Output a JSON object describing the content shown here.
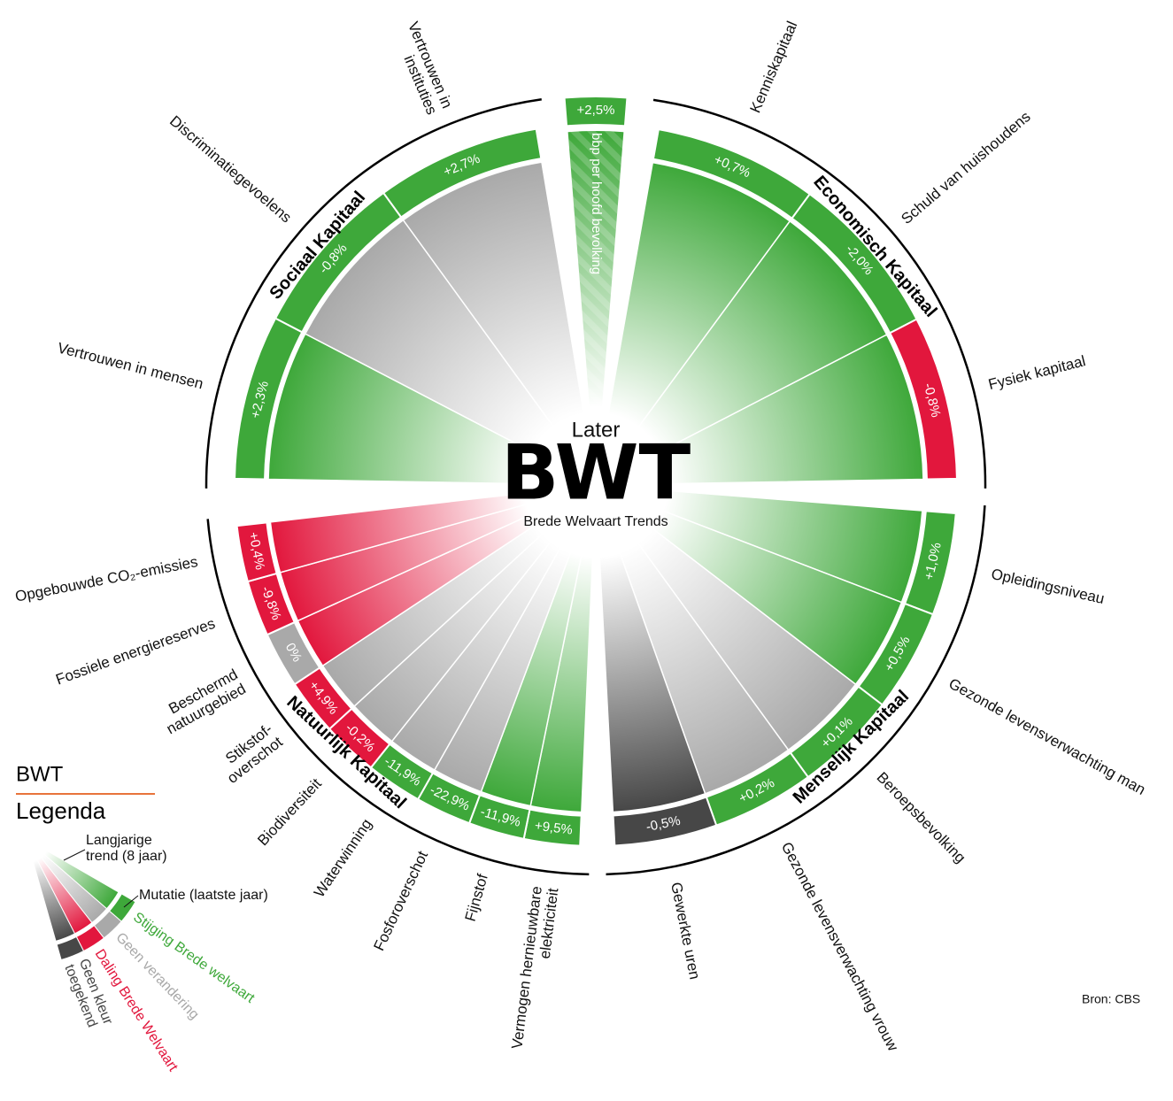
{
  "chart_data": {
    "type": "radial",
    "pretitle": "Later",
    "title": "BWT",
    "subtitle": "Brede Welvaart Trends",
    "source": "Bron: CBS",
    "bbp": {
      "category": "bbp per hoofd bevolking",
      "value": 2.5,
      "value_label": "+2,5%",
      "trend_color": "#3ea83a",
      "band_color": "#3ea83a"
    },
    "groups": [
      {
        "name": "Economisch Kapitaal",
        "categories": [
          "Kenniskapitaal",
          "Schuld van huishoudens",
          "Fysiek kapitaal"
        ],
        "values": [
          0.7,
          -2.0,
          -0.8
        ],
        "value_labels": [
          "+0,7%",
          "-2,0%",
          "-0,8%"
        ],
        "trend_colors": [
          "#3ea83a",
          "#3ea83a",
          "#3ea83a"
        ],
        "band_colors": [
          "#3ea83a",
          "#3ea83a",
          "#e2173d"
        ]
      },
      {
        "name": "Menselijk Kapitaal",
        "categories": [
          "Opleidingsniveau",
          "Gezonde levensverwachting man",
          "Beroepsbevolking",
          "Gezonde levensverwachting vrouw",
          "Gewerkte uren"
        ],
        "values": [
          1.0,
          0.5,
          0.1,
          0.2,
          -0.5
        ],
        "value_labels": [
          "+1,0%",
          "+0,5%",
          "+0,1%",
          "+0,2%",
          "-0,5%"
        ],
        "trend_colors": [
          "#3ea83a",
          "#3ea83a",
          "#a9a9a9",
          "#a9a9a9",
          "#474747"
        ],
        "band_colors": [
          "#3ea83a",
          "#3ea83a",
          "#3ea83a",
          "#3ea83a",
          "#474747"
        ]
      },
      {
        "name": "Natuurlijk Kapitaal",
        "categories": [
          [
            "Vermogen hernieuwbare",
            "elektriciteit"
          ],
          "Fijnstof",
          "Fosforoverschot",
          "Waterwinning",
          "Biodiversiteit",
          [
            "Stikstof-",
            "overschot"
          ],
          [
            "Beschermd",
            "natuurgebied"
          ],
          "Fossiele energiereserves",
          "Opgebouwde CO₂-emissies"
        ],
        "values": [
          9.5,
          -11.9,
          -22.9,
          -11.9,
          -0.2,
          4.9,
          0,
          -9.8,
          0.4
        ],
        "value_labels": [
          "+9,5%",
          "-11,9%",
          "-22,9%",
          "-11,9%",
          "-0,2%",
          "+4,9%",
          "0%",
          "-9,8%",
          "+0,4%"
        ],
        "trend_colors": [
          "#3ea83a",
          "#3ea83a",
          "#a9a9a9",
          "#a9a9a9",
          "#a9a9a9",
          "#a9a9a9",
          "#e2173d",
          "#e2173d",
          "#e2173d"
        ],
        "band_colors": [
          "#3ea83a",
          "#3ea83a",
          "#3ea83a",
          "#3ea83a",
          "#e2173d",
          "#e2173d",
          "#a9a9a9",
          "#e2173d",
          "#e2173d"
        ]
      },
      {
        "name": "Sociaal Kapitaal",
        "categories": [
          "Vertrouwen in mensen",
          "Discriminatiegevoelens",
          [
            "Vertrouwen in",
            "instituties"
          ]
        ],
        "values": [
          2.3,
          -0.8,
          2.7
        ],
        "value_labels": [
          "+2,3%",
          "-0,8%",
          "+2,7%"
        ],
        "trend_colors": [
          "#3ea83a",
          "#a9a9a9",
          "#a9a9a9"
        ],
        "band_colors": [
          "#3ea83a",
          "#3ea83a",
          "#3ea83a"
        ]
      }
    ],
    "legend": {
      "title": "BWT",
      "subtitle": "Legenda",
      "trend_label": [
        "Langjarige",
        "trend (8 jaar)"
      ],
      "band_label": "Mutatie (laatste jaar)",
      "items": [
        {
          "label": "Stijging Brede welvaart",
          "color": "#3ea83a"
        },
        {
          "label": "Geen verandering",
          "color": "#a9a9a9"
        },
        {
          "label": "Daling Brede Welvaart",
          "color": "#e2173d"
        },
        {
          "label": [
            "Geen kleur",
            "toegekend"
          ],
          "color": "#474747"
        }
      ]
    }
  }
}
